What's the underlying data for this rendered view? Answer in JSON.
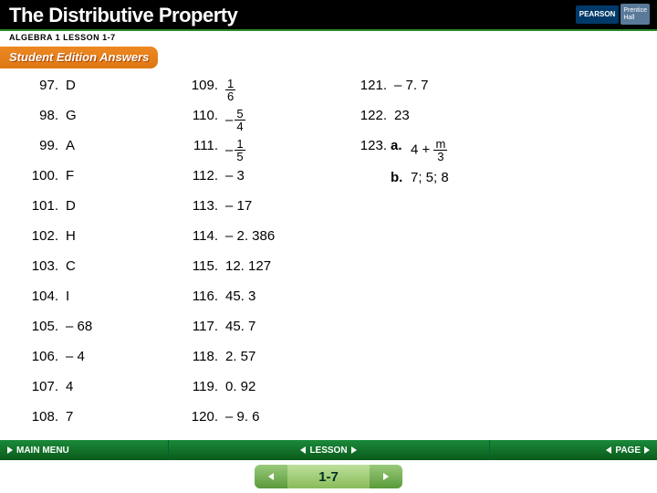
{
  "header": {
    "title": "The Distributive Property",
    "subtitle": "ALGEBRA 1  LESSON 1-7",
    "student_edition": "Student Edition Answers",
    "logo_pearson": "PEARSON",
    "logo_prentice1": "Prentice",
    "logo_prentice2": "Hall"
  },
  "col1": [
    {
      "n": "97.",
      "a": "D"
    },
    {
      "n": "98.",
      "a": "G"
    },
    {
      "n": "99.",
      "a": "A"
    },
    {
      "n": "100.",
      "a": "F"
    },
    {
      "n": "101.",
      "a": "D"
    },
    {
      "n": "102.",
      "a": "H"
    },
    {
      "n": "103.",
      "a": "C"
    },
    {
      "n": "104.",
      "a": "I"
    },
    {
      "n": "105.",
      "a": "– 68"
    },
    {
      "n": "106.",
      "a": "– 4"
    },
    {
      "n": "107.",
      "a": "4"
    },
    {
      "n": "108.",
      "a": "7"
    }
  ],
  "col2": [
    {
      "n": "109.",
      "frac": {
        "num": "1",
        "den": "6"
      }
    },
    {
      "n": "110.",
      "neg": "–",
      "frac": {
        "num": "5",
        "den": "4"
      }
    },
    {
      "n": "111.",
      "neg": "–",
      "frac": {
        "num": "1",
        "den": "5"
      }
    },
    {
      "n": "112.",
      "a": "– 3"
    },
    {
      "n": "113.",
      "a": "– 17"
    },
    {
      "n": "114.",
      "a": "– 2. 386"
    },
    {
      "n": "115.",
      "a": "12. 127"
    },
    {
      "n": "116.",
      "a": "45. 3"
    },
    {
      "n": "117.",
      "a": "45. 7"
    },
    {
      "n": "118.",
      "a": "2. 57"
    },
    {
      "n": "119.",
      "a": "0. 92"
    },
    {
      "n": "120.",
      "a": "– 9. 6"
    }
  ],
  "col3": [
    {
      "n": "121.",
      "a": "– 7. 7"
    },
    {
      "n": "122.",
      "a": "23"
    }
  ],
  "q123": {
    "n": "123.",
    "a_label": "a.",
    "a_prefix": "4 + ",
    "a_frac": {
      "num": "m",
      "den": "3"
    },
    "b_label": "b.",
    "b_text": "7; 5; 8"
  },
  "footer": {
    "main_menu": "MAIN MENU",
    "lesson": "LESSON",
    "page": "PAGE",
    "page_num": "1-7"
  }
}
